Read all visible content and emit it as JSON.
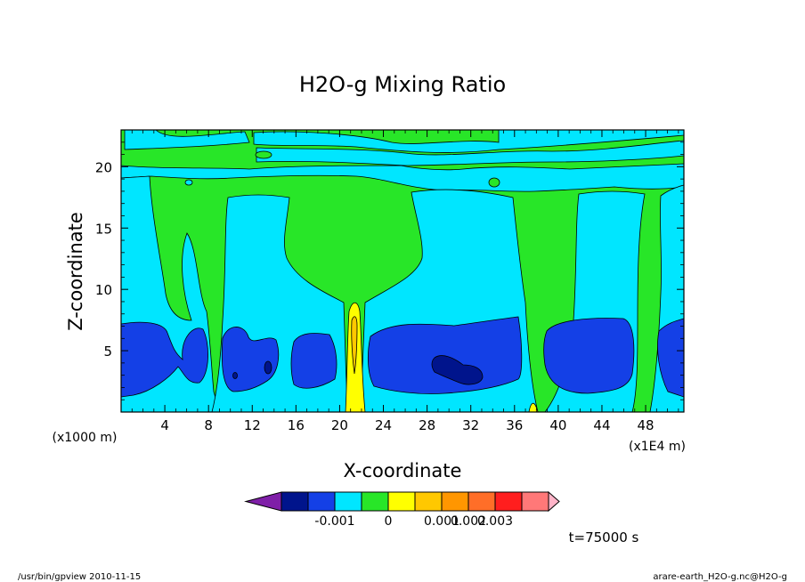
{
  "chart_data": {
    "type": "heatmap",
    "title": "H2O-g Mixing Ratio",
    "xlabel": "X-coordinate",
    "ylabel": "Z-coordinate",
    "x_unit_left": "(x1000 m)",
    "x_unit_right": "(x1E4 m)",
    "xlim": [
      0,
      51.5
    ],
    "ylim": [
      0,
      23
    ],
    "xticks": [
      4,
      8,
      12,
      16,
      20,
      24,
      28,
      32,
      36,
      40,
      44,
      48
    ],
    "xtick_labels": [
      "4",
      "8",
      "12",
      "16",
      "20",
      "24",
      "28",
      "32",
      "36",
      "40",
      "44",
      "48"
    ],
    "yticks": [
      5,
      10,
      15,
      20
    ],
    "ytick_labels": [
      "5",
      "10",
      "15",
      "20"
    ],
    "annotation_time": "t=75000 s",
    "colorbar": {
      "colors": [
        "#7f1fa8",
        "#00148c",
        "#1440e6",
        "#00e6ff",
        "#28e628",
        "#ffff00",
        "#ffc800",
        "#ff9600",
        "#ff6e28",
        "#ff1e1e",
        "#ff7878",
        "#ffb4c8"
      ],
      "tick_labels": [
        "-0.001",
        "0",
        "0.001",
        "0.002",
        "0.003"
      ],
      "tick_after_box": [
        2,
        4,
        6,
        7,
        8
      ]
    },
    "regions": [
      {
        "level": "green",
        "color": "#28e628",
        "description": "background mixing ratio"
      },
      {
        "level": "cyan",
        "color": "#00e6ff",
        "description": "lower values"
      },
      {
        "level": "blue",
        "color": "#1440e6",
        "description": "low values near surface"
      },
      {
        "level": "darkblue",
        "color": "#00148c",
        "description": "lowest values"
      },
      {
        "level": "yellow",
        "color": "#ffff00",
        "description": "plume near x=21"
      }
    ]
  },
  "footer": {
    "left": "/usr/bin/gpview  2010-11-15",
    "right": "arare-earth_H2O-g.nc@H2O-g"
  }
}
